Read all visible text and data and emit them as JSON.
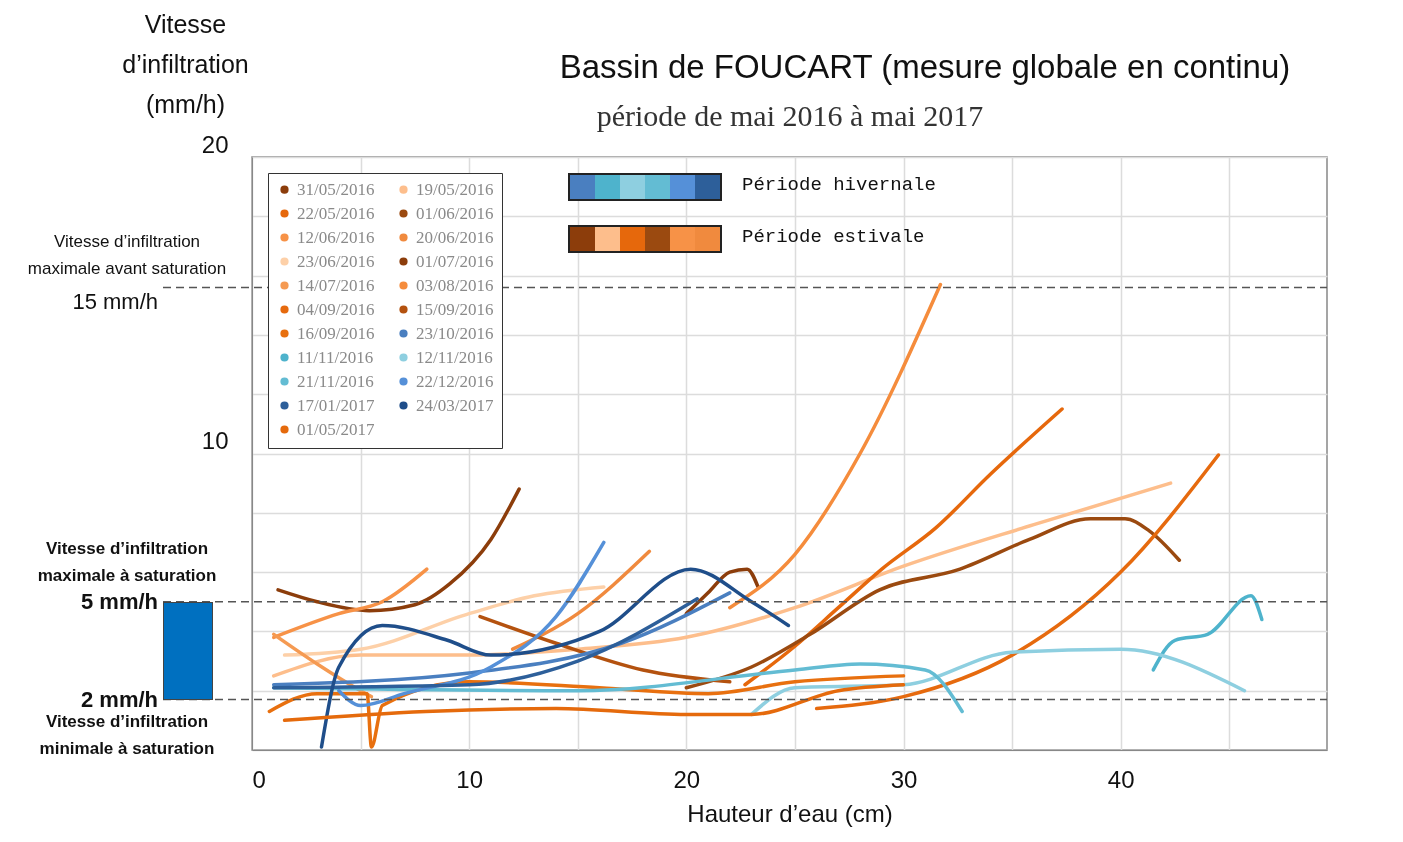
{
  "chart_data": {
    "type": "line",
    "title": "Bassin de FOUCART (mesure globale en continu)",
    "subtitle": "période de mai 2016 à mai 2017",
    "xlabel": "Hauteur d’eau (cm)",
    "ylabel": "Vitesse d’infiltration (mm/h)",
    "xlim": [
      0,
      49.5
    ],
    "ylim": [
      0,
      20
    ],
    "xticks": [
      0,
      {
        "value": 5,
        "label": null
      },
      10,
      {
        "value": 15,
        "label": null
      },
      20,
      {
        "value": 25,
        "label": null
      },
      30,
      {
        "value": 35,
        "label": null
      },
      40,
      {
        "value": 45,
        "label": null
      }
    ],
    "yticks": [
      {
        "value": 0,
        "label": null
      },
      {
        "value": 2,
        "label": null
      },
      {
        "value": 4,
        "label": null
      },
      {
        "value": 6,
        "label": null
      },
      {
        "value": 8,
        "label": null
      },
      10,
      {
        "value": 12,
        "label": null
      },
      {
        "value": 14,
        "label": null
      },
      {
        "value": 16,
        "label": null
      },
      {
        "value": 18,
        "label": null
      },
      20
    ],
    "grid": true,
    "legend": "top left",
    "line_style": "solid",
    "series": [
      {
        "name": "31/05/2016",
        "color": "#8c3d0b",
        "x": [
          1.2,
          3,
          5.4,
          7.5,
          9.1,
          11,
          12.3
        ],
        "values": [
          5.4,
          5.0,
          4.7,
          4.9,
          5.6,
          7.1,
          8.8
        ]
      },
      {
        "name": "19/05/2016",
        "color": "#fdbe8c",
        "x": [
          1,
          5,
          10,
          15,
          20,
          25,
          30,
          36,
          42.3
        ],
        "values": [
          2.5,
          3.2,
          3.2,
          3.4,
          3.8,
          4.8,
          6.2,
          7.6,
          9.0
        ]
      },
      {
        "name": "22/05/2016",
        "color": "#e6680c",
        "x": [
          22.7,
          25,
          27,
          29,
          31.5,
          34,
          37.3
        ],
        "values": [
          2.2,
          3.5,
          4.8,
          6.1,
          7.5,
          9.3,
          11.5
        ]
      },
      {
        "name": "01/06/2016",
        "color": "#9b4a10",
        "x": [
          20,
          23,
          25.7,
          28.9,
          32.6,
          35.8,
          38.6,
          40.2,
          41.3,
          42.7
        ],
        "values": [
          2.1,
          2.8,
          3.9,
          5.4,
          6.1,
          7.1,
          7.8,
          7.8,
          7.4,
          6.4
        ]
      },
      {
        "name": "12/06/2016",
        "color": "#f79247",
        "x": [
          1,
          4,
          6,
          8.05
        ],
        "values": [
          3.8,
          4.6,
          5.0,
          6.1
        ]
      },
      {
        "name": "20/06/2016",
        "color": "#f08a3e",
        "x": [
          12,
          15,
          18.3
        ],
        "values": [
          3.4,
          4.6,
          6.7
        ]
      },
      {
        "name": "23/06/2016",
        "color": "#fdd0a8",
        "x": [
          1.5,
          5,
          10,
          13,
          16.2
        ],
        "values": [
          3.2,
          3.4,
          4.6,
          5.2,
          5.5
        ]
      },
      {
        "name": "01/07/2016",
        "color": "#8c3d0b",
        "x": [
          20,
          21,
          22,
          22.8,
          23.3
        ],
        "values": [
          4.6,
          5.3,
          6.0,
          6.1,
          5.5
        ]
      },
      {
        "name": "14/07/2016",
        "color": "#f59a52",
        "x": [
          1,
          3,
          5,
          5.5
        ],
        "values": [
          3.9,
          2.9,
          2.0,
          1.8
        ]
      },
      {
        "name": "03/08/2016",
        "color": "#f58c3c",
        "x": [
          22,
          25,
          28,
          31.7
        ],
        "values": [
          4.8,
          6.6,
          10,
          15.7
        ]
      },
      {
        "name": "04/09/2016",
        "color": "#e66a0e",
        "x": [
          26,
          30,
          35,
          40,
          44.5
        ],
        "values": [
          1.4,
          1.8,
          3.2,
          6.0,
          9.95
        ]
      },
      {
        "name": "15/09/2016",
        "color": "#b4520f",
        "x": [
          10.5,
          14,
          18,
          22
        ],
        "values": [
          4.5,
          3.6,
          2.7,
          2.3
        ]
      },
      {
        "name": "16/09/2016",
        "color": "#e8700f",
        "x": [
          0.8,
          3,
          5.3,
          5.5,
          6,
          10,
          16,
          21,
          25,
          30
        ],
        "values": [
          1.3,
          1.9,
          1.9,
          0.1,
          1.5,
          2.3,
          2.1,
          1.9,
          2.3,
          2.5
        ]
      },
      {
        "name": "23/10/2016",
        "color": "#4a7fc0",
        "x": [
          1,
          10,
          17,
          22
        ],
        "values": [
          2.2,
          2.6,
          3.6,
          5.3
        ]
      },
      {
        "name": "11/11/2016",
        "color": "#4eb3cc",
        "x": [
          41.5,
          42.5,
          44,
          46,
          46.5
        ],
        "values": [
          2.7,
          3.7,
          3.9,
          5.2,
          4.4
        ]
      },
      {
        "name": "12/11/2016",
        "color": "#8ecfe0",
        "x": [
          23,
          25,
          30,
          35,
          40,
          45.7
        ],
        "values": [
          1.2,
          2.1,
          2.2,
          3.3,
          3.4,
          2.0
        ]
      },
      {
        "name": "21/11/2016",
        "color": "#63bcd3",
        "x": [
          1,
          15,
          25,
          28,
          31,
          32.7
        ],
        "values": [
          2.1,
          2.0,
          2.7,
          2.9,
          2.7,
          1.3
        ]
      },
      {
        "name": "22/12/2016",
        "color": "#5590d8",
        "x": [
          4,
          5,
          7,
          11,
          14,
          16.2
        ],
        "values": [
          2.0,
          1.5,
          1.9,
          2.8,
          4.5,
          7.0
        ]
      },
      {
        "name": "17/01/2017",
        "color": "#2d5f9a",
        "x": [
          1,
          10,
          15,
          20.5
        ],
        "values": [
          2.1,
          2.2,
          3.0,
          5.1
        ]
      },
      {
        "name": "24/03/2017",
        "color": "#1f4e8a",
        "x": [
          3.2,
          4,
          6,
          9,
          11,
          16,
          20.2,
          23,
          24.7
        ],
        "values": [
          0.1,
          2.8,
          4.2,
          3.7,
          3.2,
          4.0,
          6.1,
          5.0,
          4.2
        ]
      },
      {
        "name": "01/05/2017",
        "color": "#e56a0c",
        "x": [
          1.5,
          8,
          14,
          20,
          23,
          27,
          30
        ],
        "values": [
          1.0,
          1.3,
          1.4,
          1.2,
          1.2,
          2.0,
          2.2
        ]
      }
    ],
    "ref_lines": [
      {
        "axis": "y",
        "value": 15.6,
        "label": "15 mm/h",
        "line_style": "dashed",
        "color": "#555555"
      },
      {
        "axis": "y",
        "value": 5,
        "label": "5 mm/h",
        "line_style": "dashed",
        "color": "#555555"
      },
      {
        "axis": "y",
        "value": 1.7,
        "label": "2 mm/h",
        "line_style": "dashed",
        "color": "#555555"
      }
    ],
    "annotations": [
      "Vitesse d’infiltration maximale avant saturation",
      "Vitesse d’infiltration maximale à saturation",
      "Vitesse d’infiltration minimale à saturation",
      "Période hivernale",
      "Période estivale"
    ]
  }
}
